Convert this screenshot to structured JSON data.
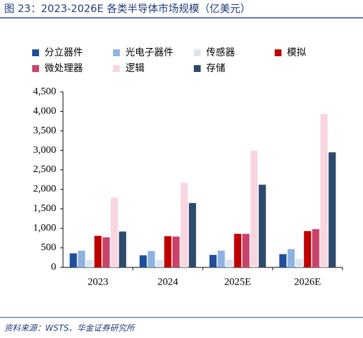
{
  "chart_data": {
    "type": "bar",
    "title": "图 23：2023-2026E 各类半导体市场规模（亿美元）",
    "source": "资料来源：WSTS、华金证券研究所",
    "categories": [
      "2023",
      "2024",
      "2025E",
      "2026E"
    ],
    "series": [
      {
        "name": "分立器件",
        "color": "#1f4e9c",
        "values": [
          360,
          310,
          320,
          340
        ]
      },
      {
        "name": "光电子器件",
        "color": "#8db3e2",
        "values": [
          430,
          420,
          430,
          470
        ]
      },
      {
        "name": "传感器",
        "color": "#dce6f2",
        "values": [
          200,
          190,
          200,
          220
        ]
      },
      {
        "name": "模拟",
        "color": "#c00000",
        "values": [
          810,
          800,
          860,
          930
        ]
      },
      {
        "name": "微处理器",
        "color": "#c9436b",
        "values": [
          770,
          790,
          860,
          980
        ]
      },
      {
        "name": "逻辑",
        "color": "#f9d5e0",
        "values": [
          1790,
          2170,
          2990,
          3930
        ]
      },
      {
        "name": "存储",
        "color": "#2e4a6e",
        "values": [
          920,
          1650,
          2120,
          2950
        ]
      }
    ],
    "ylim": [
      0,
      4500
    ],
    "yticks": [
      0,
      500,
      {
        "value": 1000,
        "label": "1,000"
      },
      {
        "value": 1500,
        "label": "1,500"
      },
      {
        "value": 2000,
        "label": "2,000"
      },
      {
        "value": 2500,
        "label": "2,500"
      },
      {
        "value": 3000,
        "label": "3,000"
      },
      {
        "value": 3500,
        "label": "3,500"
      },
      {
        "value": 4000,
        "label": "4,000"
      },
      {
        "value": 4500,
        "label": "4,500"
      }
    ]
  }
}
